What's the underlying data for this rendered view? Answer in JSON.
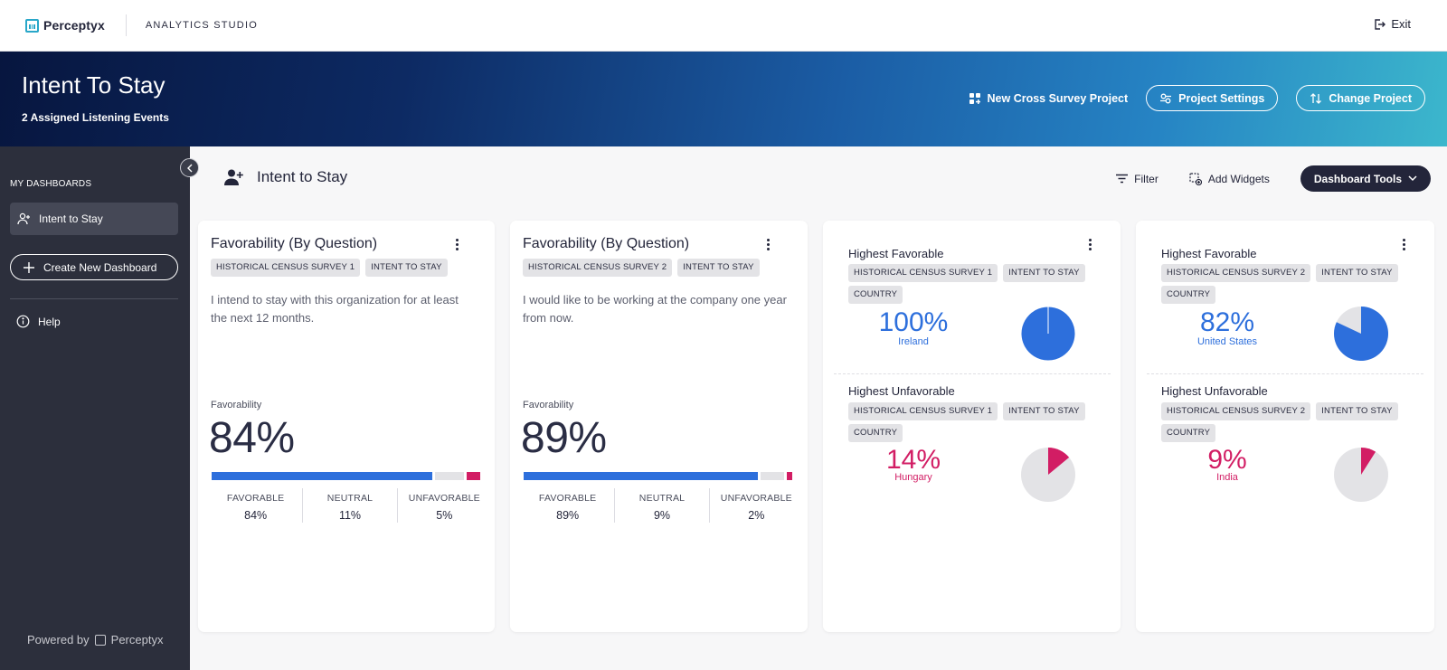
{
  "topbar": {
    "brand": "Perceptyx",
    "app_name": "ANALYTICS STUDIO",
    "exit_label": "Exit"
  },
  "hero": {
    "title": "Intent To Stay",
    "subtitle": "2 Assigned Listening Events",
    "new_cross_survey": "New Cross Survey Project",
    "project_settings": "Project Settings",
    "change_project": "Change Project"
  },
  "sidebar": {
    "heading": "MY DASHBOARDS",
    "active_item": "Intent to Stay",
    "create_label": "Create New Dashboard",
    "help_label": "Help",
    "powered_by": "Powered by",
    "powered_brand": "Perceptyx"
  },
  "dashboard": {
    "title": "Intent to Stay",
    "filter_label": "Filter",
    "add_widgets_label": "Add Widgets",
    "tools_label": "Dashboard Tools"
  },
  "colors": {
    "favorable": "#2d6fdc",
    "neutral": "#e3e3e6",
    "unfavorable": "#d21d64"
  },
  "cards": [
    {
      "title": "Favorability (By Question)",
      "tags": [
        "HISTORICAL CENSUS SURVEY 1",
        "INTENT TO STAY"
      ],
      "question": "I intend to stay with this organization for at least the next 12 months.",
      "metric_label": "Favorability",
      "big_value": "84%",
      "favorable": 84,
      "neutral": 11,
      "unfavorable": 5,
      "stats": [
        {
          "label": "FAVORABLE",
          "value": "84%"
        },
        {
          "label": "NEUTRAL",
          "value": "11%"
        },
        {
          "label": "UNFAVORABLE",
          "value": "5%"
        }
      ]
    },
    {
      "title": "Favorability (By Question)",
      "tags": [
        "HISTORICAL CENSUS SURVEY 2",
        "INTENT TO STAY"
      ],
      "question": "I would like to be working at the company one year from now.",
      "metric_label": "Favorability",
      "big_value": "89%",
      "favorable": 89,
      "neutral": 9,
      "unfavorable": 2,
      "stats": [
        {
          "label": "FAVORABLE",
          "value": "89%"
        },
        {
          "label": "NEUTRAL",
          "value": "9%"
        },
        {
          "label": "UNFAVORABLE",
          "value": "2%"
        }
      ]
    }
  ],
  "highlights": [
    {
      "favorable": {
        "title": "Highest Favorable",
        "tags": [
          "HISTORICAL CENSUS SURVEY 1",
          "INTENT TO STAY",
          "COUNTRY"
        ],
        "pct": "100%",
        "place": "Ireland",
        "value": 100
      },
      "unfavorable": {
        "title": "Highest Unfavorable",
        "tags": [
          "HISTORICAL CENSUS SURVEY 1",
          "INTENT TO STAY",
          "COUNTRY"
        ],
        "pct": "14%",
        "place": "Hungary",
        "value": 14
      }
    },
    {
      "favorable": {
        "title": "Highest Favorable",
        "tags": [
          "HISTORICAL CENSUS SURVEY 2",
          "INTENT TO STAY",
          "COUNTRY"
        ],
        "pct": "82%",
        "place": "United States",
        "value": 82
      },
      "unfavorable": {
        "title": "Highest Unfavorable",
        "tags": [
          "HISTORICAL CENSUS SURVEY 2",
          "INTENT TO STAY",
          "COUNTRY"
        ],
        "pct": "9%",
        "place": "India",
        "value": 9
      }
    }
  ]
}
